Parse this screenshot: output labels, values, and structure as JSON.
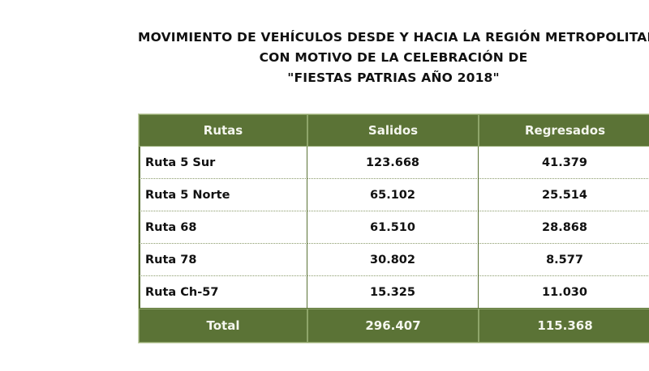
{
  "title": {
    "line1": "MOVIMIENTO DE VEHÍCULOS DESDE Y HACIA LA REGIÓN METROPOLITANA,",
    "line2": "CON MOTIVO DE LA CELEBRACIÓN DE",
    "line3": "\"FIESTAS PATRIAS AÑO 2018\""
  },
  "table": {
    "headers": [
      "Rutas",
      "Salidos",
      "Regresados"
    ],
    "rows": [
      [
        "Ruta 5 Sur",
        "123.668",
        "41.379"
      ],
      [
        "Ruta 5 Norte",
        "65.102",
        "25.514"
      ],
      [
        "Ruta 68",
        "61.510",
        "28.868"
      ],
      [
        "Ruta 78",
        "30.802",
        "8.577"
      ],
      [
        "Ruta Ch-57",
        "15.325",
        "11.030"
      ]
    ],
    "total": [
      "Total",
      "296.407",
      "115.368"
    ]
  },
  "colors": {
    "header_bg": "#5b7336",
    "header_text": "#f4f6ee",
    "border": "#5b7336"
  }
}
